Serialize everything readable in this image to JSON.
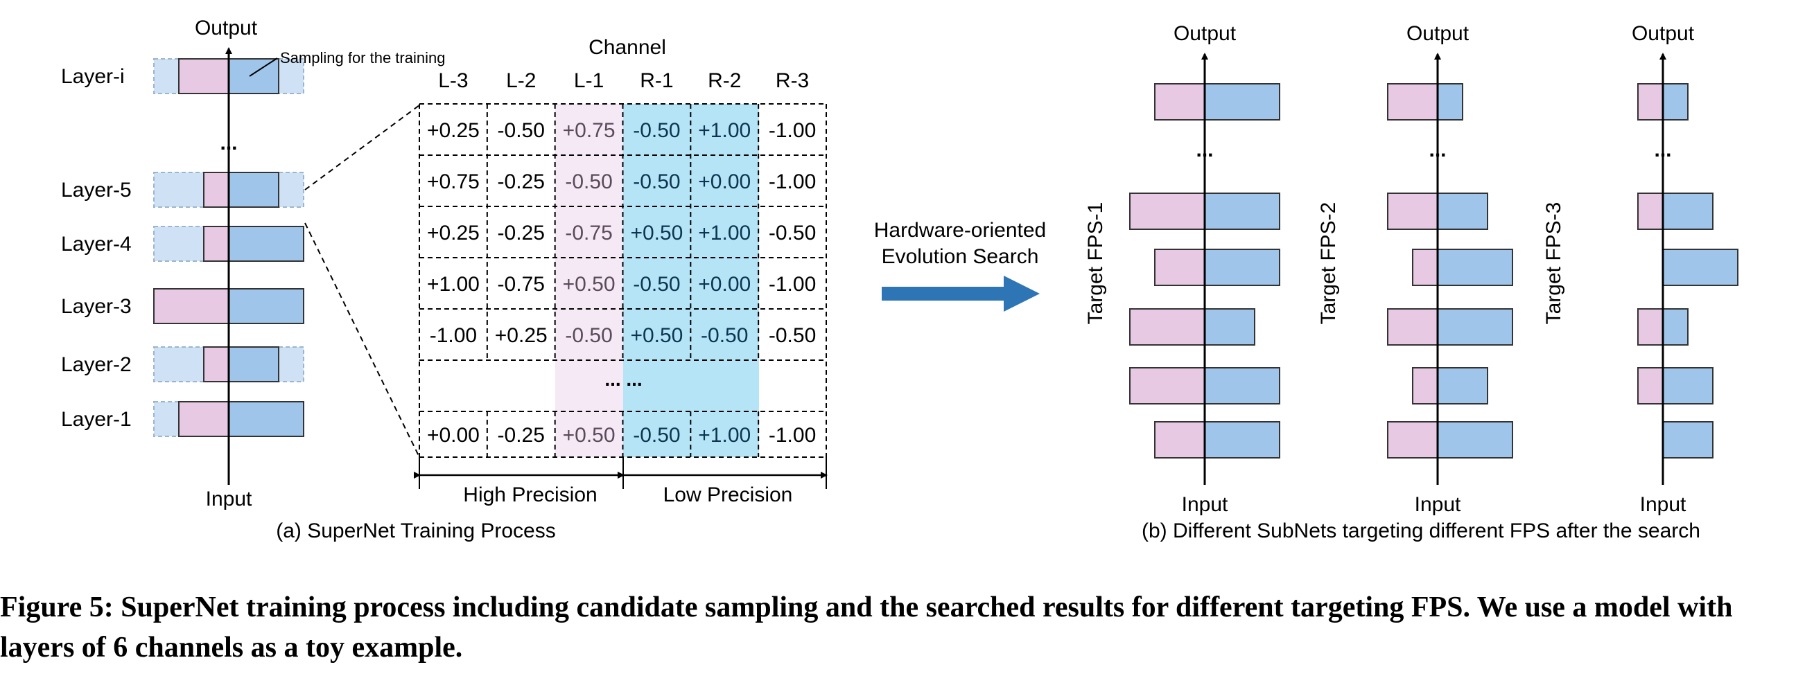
{
  "colors": {
    "pink": "#e7c9e3",
    "blue": "#9fc6ea",
    "faint_blue": "#cfe1f4",
    "cyan_band": "#b5e4f7",
    "pink_band": "#f4e9f4",
    "arrow": "#2e75b6"
  },
  "left": {
    "output_label": "Output",
    "input_label": "Input",
    "sampling_note": "Sampling for the training",
    "ellipsis": "...",
    "layers": [
      {
        "name": "Layer-i",
        "pink_channels": 2,
        "blue_channels": 2
      },
      {
        "name": "Layer-5",
        "pink_channels": 1,
        "blue_channels": 2
      },
      {
        "name": "Layer-4",
        "pink_channels": 1,
        "blue_channels": 3
      },
      {
        "name": "Layer-3",
        "pink_channels": 3,
        "blue_channels": 3
      },
      {
        "name": "Layer-2",
        "pink_channels": 1,
        "blue_channels": 2
      },
      {
        "name": "Layer-1",
        "pink_channels": 2,
        "blue_channels": 3
      }
    ],
    "caption": "(a) SuperNet Training Process"
  },
  "table": {
    "title": "Channel",
    "columns": [
      "L-3",
      "L-2",
      "L-1",
      "R-1",
      "R-2",
      "R-3"
    ],
    "rows": [
      [
        "+0.25",
        "-0.50",
        "+0.75",
        "-0.50",
        "+1.00",
        "-1.00"
      ],
      [
        "+0.75",
        "-0.25",
        "-0.50",
        "-0.50",
        "+0.00",
        "-1.00"
      ],
      [
        "+0.25",
        "-0.25",
        "-0.75",
        "+0.50",
        "+1.00",
        "-0.50"
      ],
      [
        "+1.00",
        "-0.75",
        "+0.50",
        "-0.50",
        "+0.00",
        "-1.00"
      ],
      [
        "-1.00",
        "+0.25",
        "-0.50",
        "+0.50",
        "-0.50",
        "-0.50"
      ],
      null,
      [
        "+0.00",
        "-0.25",
        "+0.50",
        "-0.50",
        "+1.00",
        "-1.00"
      ]
    ],
    "ellipsis_row": "...",
    "high_precision": "High Precision",
    "low_precision": "Low Precision"
  },
  "search": {
    "line1": "Hardware-oriented",
    "line2": "Evolution Search"
  },
  "right": {
    "output_label": "Output",
    "input_label": "Input",
    "ellipsis": "...",
    "caption": "(b) Different SubNets targeting different FPS after the search",
    "subnets": [
      {
        "target": "Target FPS-1",
        "bars": [
          {
            "pink": 2,
            "blue": 3
          },
          {
            "pink": 3,
            "blue": 3
          },
          {
            "pink": 2,
            "blue": 3
          },
          {
            "pink": 3,
            "blue": 2
          },
          {
            "pink": 3,
            "blue": 3
          },
          {
            "pink": 2,
            "blue": 3
          }
        ]
      },
      {
        "target": "Target FPS-2",
        "bars": [
          {
            "pink": 2,
            "blue": 1
          },
          {
            "pink": 2,
            "blue": 2
          },
          {
            "pink": 1,
            "blue": 3
          },
          {
            "pink": 2,
            "blue": 3
          },
          {
            "pink": 1,
            "blue": 2
          },
          {
            "pink": 2,
            "blue": 3
          }
        ]
      },
      {
        "target": "Target FPS-3",
        "bars": [
          {
            "pink": 1,
            "blue": 1
          },
          {
            "pink": 1,
            "blue": 2
          },
          {
            "pink": 0,
            "blue": 3
          },
          {
            "pink": 1,
            "blue": 1
          },
          {
            "pink": 1,
            "blue": 2
          },
          {
            "pink": 0,
            "blue": 2
          }
        ]
      }
    ]
  },
  "figure_caption": "Figure 5: SuperNet training process including candidate sampling and the searched results for different targeting FPS. We use a model with layers of 6 channels as a toy example."
}
